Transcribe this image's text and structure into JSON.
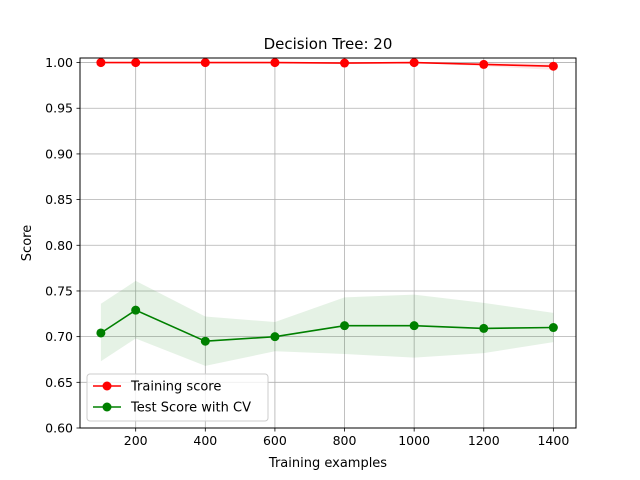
{
  "chart_data": {
    "type": "line",
    "title": "Decision Tree: 20",
    "xlabel": "Training examples",
    "ylabel": "Score",
    "xlim": [
      40,
      1465
    ],
    "ylim": [
      0.6,
      1.005
    ],
    "xticks": [
      200,
      400,
      600,
      800,
      1000,
      1200,
      1400
    ],
    "xtick_labels": [
      "200",
      "400",
      "600",
      "800",
      "1000",
      "1200",
      "1400"
    ],
    "yticks": [
      0.6,
      0.65,
      0.7,
      0.75,
      0.8,
      0.85,
      0.9,
      0.95,
      1.0
    ],
    "ytick_labels": [
      "0.60",
      "0.65",
      "0.70",
      "0.75",
      "0.80",
      "0.85",
      "0.90",
      "0.95",
      "1.00"
    ],
    "grid": true,
    "legend_position": "lower-left",
    "x": [
      100,
      200,
      400,
      600,
      800,
      1000,
      1200,
      1400
    ],
    "series": [
      {
        "name": "Training score",
        "color": "#ff0000",
        "band_color": "#ff0000",
        "values": [
          1.0,
          1.0,
          1.0,
          1.0,
          0.9995,
          1.0,
          0.998,
          0.996
        ],
        "band_upper": [
          1.0,
          1.0,
          1.0,
          1.0,
          1.0,
          1.0,
          1.0,
          1.0
        ],
        "band_lower": [
          1.0,
          1.0,
          1.0,
          1.0,
          0.999,
          1.0,
          0.996,
          0.992
        ]
      },
      {
        "name": "Test Score with CV",
        "color": "#008000",
        "band_color": "#008000",
        "values": [
          0.704,
          0.729,
          0.695,
          0.7,
          0.712,
          0.712,
          0.709,
          0.71
        ],
        "band_upper": [
          0.736,
          0.761,
          0.722,
          0.716,
          0.743,
          0.746,
          0.737,
          0.726
        ],
        "band_lower": [
          0.673,
          0.698,
          0.668,
          0.684,
          0.681,
          0.677,
          0.682,
          0.694
        ]
      }
    ]
  }
}
